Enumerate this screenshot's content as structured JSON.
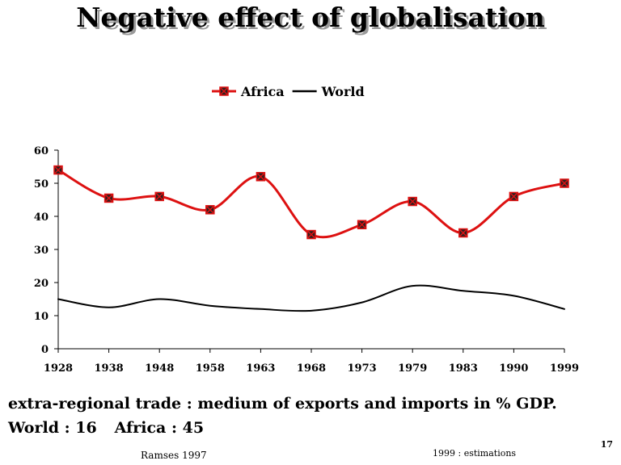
{
  "slide_title": "Negative effect of  globalisation",
  "caption_line1": "extra-regional trade : medium of  exports and   imports in % GDP.",
  "caption_line2": {
    "world": "World :  16",
    "africa": "Africa : 45"
  },
  "source": "Ramses 1997",
  "note": "1999 : estimations",
  "slide_number": "17",
  "chart_data": {
    "type": "line",
    "categories": [
      "1928",
      "1938",
      "1948",
      "1958",
      "1963",
      "1968",
      "1973",
      "1979",
      "1983",
      "1990",
      "1999"
    ],
    "series": [
      {
        "name": "Africa",
        "color": "#dd1111",
        "marker": "square-x",
        "values": [
          54,
          45.5,
          46,
          42,
          52,
          34.5,
          37.5,
          44.5,
          35,
          46,
          50
        ]
      },
      {
        "name": "World",
        "color": "#000000",
        "marker": "none",
        "values": [
          15,
          12.5,
          15,
          13,
          12,
          11.5,
          14,
          19,
          17.5,
          16,
          12
        ]
      }
    ],
    "ylim": [
      0,
      60
    ],
    "yticks": [
      "0",
      "10",
      "20",
      "30",
      "40",
      "50",
      "60"
    ],
    "legend_position": "top-center",
    "grid": false,
    "xlabel": "",
    "ylabel": ""
  }
}
